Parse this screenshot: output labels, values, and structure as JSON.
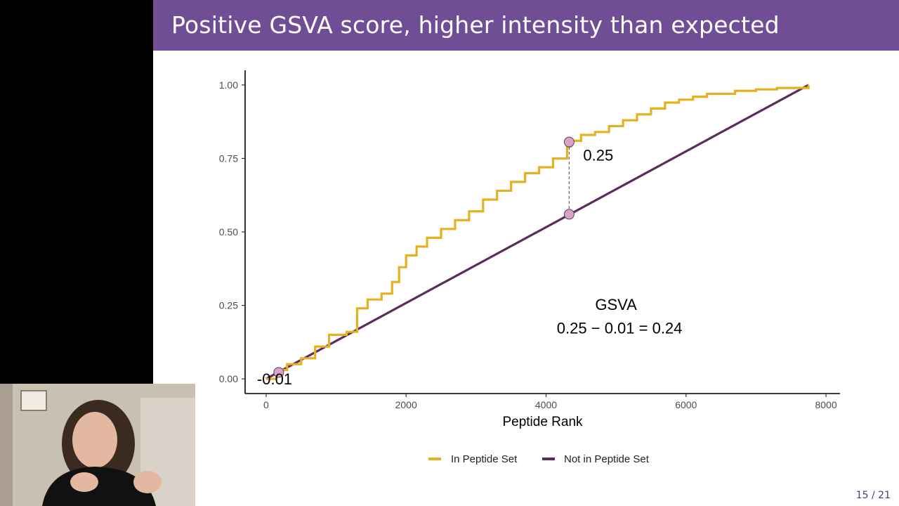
{
  "slide": {
    "title": "Positive GSVA score, higher intensity than expected",
    "page": "15 / 21"
  },
  "colors": {
    "title_bar": "#6f4e96",
    "in_set": "#e6b121",
    "not_in_set": "#5a2d5e",
    "marker": "#d8a3c9"
  },
  "chart_data": {
    "type": "line",
    "xlabel": "Peptide Rank",
    "ylabel": "",
    "xlim": [
      -300,
      8200
    ],
    "ylim": [
      -0.05,
      1.05
    ],
    "x_ticks": [
      0,
      2000,
      4000,
      6000,
      8000
    ],
    "x_tick_labels": [
      "0",
      "2000",
      "4000",
      "6000",
      "8000"
    ],
    "y_ticks": [
      0,
      0.25,
      0.5,
      0.75,
      1
    ],
    "y_tick_labels": [
      "0.00",
      "0.25",
      "0.50",
      "0.75",
      "1.00"
    ],
    "grid": false,
    "legend_position": "bottom",
    "series": [
      {
        "name": "In Peptide Set",
        "color": "#e6b121",
        "x": [
          0,
          150,
          300,
          500,
          700,
          900,
          1150,
          1300,
          1450,
          1650,
          1800,
          1900,
          2000,
          2150,
          2300,
          2500,
          2700,
          2900,
          3100,
          3300,
          3500,
          3700,
          3900,
          4100,
          4300,
          4350,
          4500,
          4700,
          4900,
          5100,
          5300,
          5500,
          5700,
          5900,
          6100,
          6300,
          6500,
          6700,
          7000,
          7300,
          7750
        ],
        "y": [
          0,
          0.03,
          0.05,
          0.07,
          0.11,
          0.15,
          0.16,
          0.24,
          0.27,
          0.29,
          0.33,
          0.38,
          0.42,
          0.45,
          0.48,
          0.51,
          0.54,
          0.57,
          0.61,
          0.64,
          0.67,
          0.7,
          0.72,
          0.75,
          0.79,
          0.81,
          0.83,
          0.84,
          0.86,
          0.88,
          0.9,
          0.92,
          0.94,
          0.95,
          0.96,
          0.97,
          0.97,
          0.98,
          0.985,
          0.99,
          1.0
        ]
      },
      {
        "name": "Not in Peptide Set",
        "color": "#5a2d5e",
        "x": [
          0,
          7750
        ],
        "y": [
          0,
          1.0
        ]
      }
    ],
    "markers": [
      {
        "x": 4330,
        "y": 0.806
      },
      {
        "x": 4330,
        "y": 0.56
      },
      {
        "x": 180,
        "y": 0.022
      }
    ],
    "annotations": {
      "max_diff": "0.25",
      "min_diff": "-0.01",
      "gsva_title": "GSVA",
      "gsva_formula": "0.25 − 0.01 = 0.24"
    }
  }
}
